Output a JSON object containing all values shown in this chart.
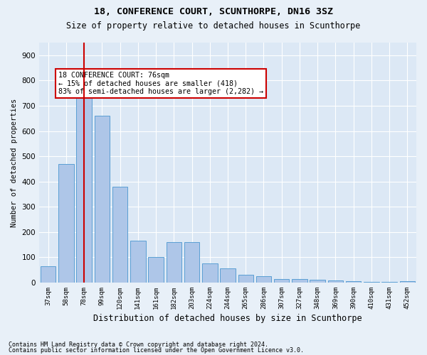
{
  "title1": "18, CONFERENCE COURT, SCUNTHORPE, DN16 3SZ",
  "title2": "Size of property relative to detached houses in Scunthorpe",
  "xlabel": "Distribution of detached houses by size in Scunthorpe",
  "ylabel": "Number of detached properties",
  "categories": [
    "37sqm",
    "58sqm",
    "78sqm",
    "99sqm",
    "120sqm",
    "141sqm",
    "161sqm",
    "182sqm",
    "203sqm",
    "224sqm",
    "244sqm",
    "265sqm",
    "286sqm",
    "307sqm",
    "327sqm",
    "348sqm",
    "369sqm",
    "390sqm",
    "410sqm",
    "431sqm",
    "452sqm"
  ],
  "values": [
    65,
    470,
    730,
    660,
    380,
    165,
    100,
    160,
    160,
    75,
    55,
    30,
    25,
    15,
    13,
    10,
    8,
    5,
    3,
    2,
    5
  ],
  "bar_color": "#aec6e8",
  "bar_edge_color": "#5a9fd4",
  "subject_bar_index": 2,
  "subject_line_color": "#cc0000",
  "ylim": [
    0,
    950
  ],
  "yticks": [
    0,
    100,
    200,
    300,
    400,
    500,
    600,
    700,
    800,
    900
  ],
  "annotation_text": "18 CONFERENCE COURT: 76sqm\n← 15% of detached houses are smaller (418)\n83% of semi-detached houses are larger (2,282) →",
  "annotation_box_color": "#ffffff",
  "annotation_box_edge_color": "#cc0000",
  "footer1": "Contains HM Land Registry data © Crown copyright and database right 2024.",
  "footer2": "Contains public sector information licensed under the Open Government Licence v3.0.",
  "background_color": "#e8f0f8",
  "plot_background_color": "#dce8f5",
  "grid_color": "#ffffff"
}
